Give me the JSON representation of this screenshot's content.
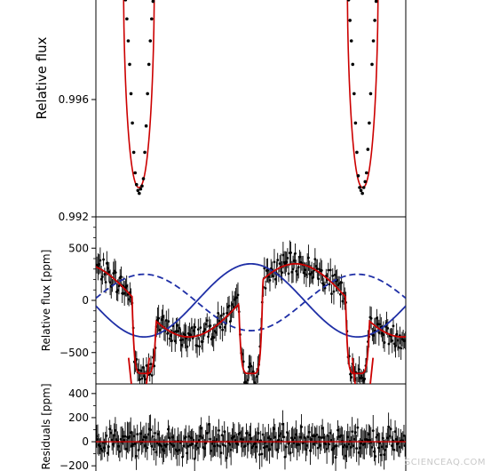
{
  "chart_data": [
    {
      "type": "line",
      "panel": "top",
      "ylabel": "Relative flux",
      "ylim": [
        0.992,
        1.0
      ],
      "yticks": [
        0.992,
        0.996
      ],
      "ytick_labels": [
        "0.992",
        "0.996"
      ],
      "xlim": [
        -0.45,
        0.45
      ],
      "transit_centers": [
        -0.325,
        0.325
      ],
      "transit_depth": 0.993,
      "transit_half_width": 0.04,
      "points": {
        "x": [
          -0.37,
          -0.364,
          -0.36,
          -0.356,
          -0.352,
          -0.348,
          -0.344,
          -0.34,
          -0.336,
          -0.332,
          -0.328,
          -0.324,
          -0.32,
          -0.316,
          -0.312,
          -0.308,
          -0.304,
          -0.3,
          -0.296,
          -0.292,
          -0.288,
          -0.284,
          -0.28,
          0.28,
          0.284,
          0.288,
          0.292,
          0.296,
          0.3,
          0.304,
          0.308,
          0.312,
          0.316,
          0.32,
          0.324,
          0.328,
          0.332,
          0.336,
          0.34,
          0.344,
          0.348,
          0.352,
          0.356,
          0.36,
          0.364,
          0.37
        ],
        "y": [
          0.99995,
          0.9994,
          0.99875,
          0.998,
          0.9972,
          0.9962,
          0.9952,
          0.9942,
          0.9935,
          0.9931,
          0.9929,
          0.9928,
          0.99295,
          0.99305,
          0.9933,
          0.9942,
          0.9951,
          0.9962,
          0.9972,
          0.998,
          0.99875,
          0.99935,
          0.9999,
          0.99995,
          0.9994,
          0.9987,
          0.998,
          0.9972,
          0.9962,
          0.9952,
          0.9942,
          0.9934,
          0.993,
          0.9929,
          0.9928,
          0.993,
          0.9932,
          0.9935,
          0.9943,
          0.9952,
          0.9962,
          0.9972,
          0.998,
          0.9987,
          0.99935,
          0.99995
        ]
      }
    },
    {
      "type": "line",
      "panel": "middle",
      "ylabel": "Relative flux [ppm]",
      "ylim": [
        -800,
        800
      ],
      "yticks": [
        -500,
        0,
        500
      ],
      "ytick_labels": [
        "−500",
        "0",
        "500"
      ],
      "xlim": [
        -0.45,
        0.45
      ],
      "model": {
        "amplitude": 350,
        "eclipse_depth": -700,
        "eclipse_centers": [
          -0.31,
          0.0,
          0.31
        ],
        "eclipse_half_width": 0.035
      },
      "series": [
        {
          "color": "#cc0000",
          "style": "solid"
        },
        {
          "color": "#1f2fa6",
          "style": "solid",
          "amplitude": 350,
          "phase": 0.0
        },
        {
          "color": "#1f2fa6",
          "style": "dashed",
          "amplitude": 270,
          "phase": 0.12
        }
      ]
    },
    {
      "type": "scatter",
      "panel": "bottom",
      "ylabel": "Residuals [ppm]",
      "ylim": [
        -280,
        480
      ],
      "yticks": [
        -200,
        0,
        200,
        400
      ],
      "ytick_labels": [
        "−200",
        "0",
        "200",
        "400"
      ],
      "xlim": [
        -0.45,
        0.45
      ],
      "scatter_amplitude": 110,
      "error_bar": 110,
      "zero_line_color": "#cc0000"
    }
  ],
  "watermark": "SCIENCEAQ.COM"
}
